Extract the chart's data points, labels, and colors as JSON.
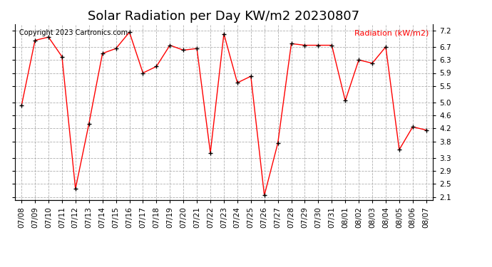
{
  "title": "Solar Radiation per Day KW/m2 20230807",
  "ylabel": "Radiation (kW/m2)",
  "copyright": "Copyright 2023 Cartronics.com",
  "dates": [
    "07/08",
    "07/09",
    "07/10",
    "07/11",
    "07/12",
    "07/13",
    "07/14",
    "07/15",
    "07/16",
    "07/17",
    "07/18",
    "07/19",
    "07/20",
    "07/21",
    "07/22",
    "07/23",
    "07/24",
    "07/25",
    "07/26",
    "07/27",
    "07/28",
    "07/29",
    "07/30",
    "07/31",
    "08/01",
    "08/02",
    "08/03",
    "08/04",
    "08/05",
    "08/06",
    "08/07"
  ],
  "values": [
    4.9,
    6.9,
    7.0,
    6.4,
    2.35,
    4.35,
    6.5,
    6.65,
    7.15,
    5.9,
    6.1,
    6.75,
    6.6,
    6.65,
    3.45,
    7.1,
    5.6,
    5.8,
    2.15,
    3.75,
    6.8,
    6.75,
    6.75,
    6.75,
    5.05,
    6.3,
    6.2,
    6.7,
    3.55,
    4.25,
    4.15
  ],
  "line_color": "#ff0000",
  "marker_color": "#000000",
  "grid_color": "#b0b0b0",
  "bg_color": "#ffffff",
  "ylabel_color": "#ff0000",
  "copyright_color": "#000000",
  "yticks": [
    2.1,
    2.5,
    2.9,
    3.3,
    3.8,
    4.2,
    4.6,
    5.0,
    5.5,
    5.9,
    6.3,
    6.7,
    7.2
  ],
  "ylim": [
    2.0,
    7.4
  ],
  "title_fontsize": 13,
  "label_fontsize": 8,
  "tick_fontsize": 7.5,
  "copyright_fontsize": 7
}
